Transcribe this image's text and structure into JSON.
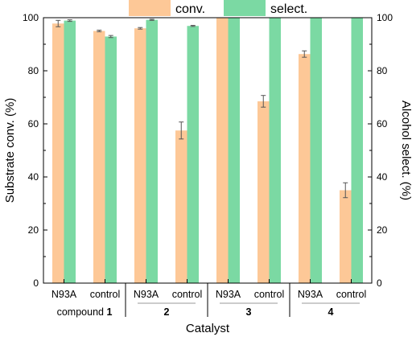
{
  "colors": {
    "conv": "#FDC897",
    "select": "#7BD9A3",
    "axis": "#000000",
    "sep": "#999999"
  },
  "chart_data": {
    "type": "bar",
    "xlabel": "Catalyst",
    "ylabel_left": "Substrate conv. (%)",
    "ylabel_right": "Alcohol select. (%)",
    "ylim": [
      0,
      100
    ],
    "yticks": [
      "0",
      "20",
      "40",
      "60",
      "80",
      "100"
    ],
    "legend_position": "top",
    "categories": [
      "N93A",
      "control",
      "N93A",
      "control",
      "N93A",
      "control",
      "N93A",
      "control"
    ],
    "groups": [
      {
        "prefix": "compound ",
        "label": "1"
      },
      {
        "prefix": "",
        "label": "2"
      },
      {
        "prefix": "",
        "label": "3"
      },
      {
        "prefix": "",
        "label": "4"
      }
    ],
    "series": [
      {
        "name": "conv.",
        "axis": "left",
        "values": [
          97.8,
          95.0,
          96.0,
          57.5,
          100,
          68.5,
          86.3,
          35.0
        ],
        "errors": [
          1.2,
          0.3,
          0.3,
          3.2,
          0,
          2.2,
          1.2,
          2.8
        ]
      },
      {
        "name": "select.",
        "axis": "right",
        "values": [
          98.9,
          92.9,
          99.2,
          96.9,
          100,
          100,
          100,
          100
        ],
        "errors": [
          0.3,
          0.4,
          0.2,
          0.2,
          0,
          0,
          0,
          0
        ]
      }
    ]
  }
}
